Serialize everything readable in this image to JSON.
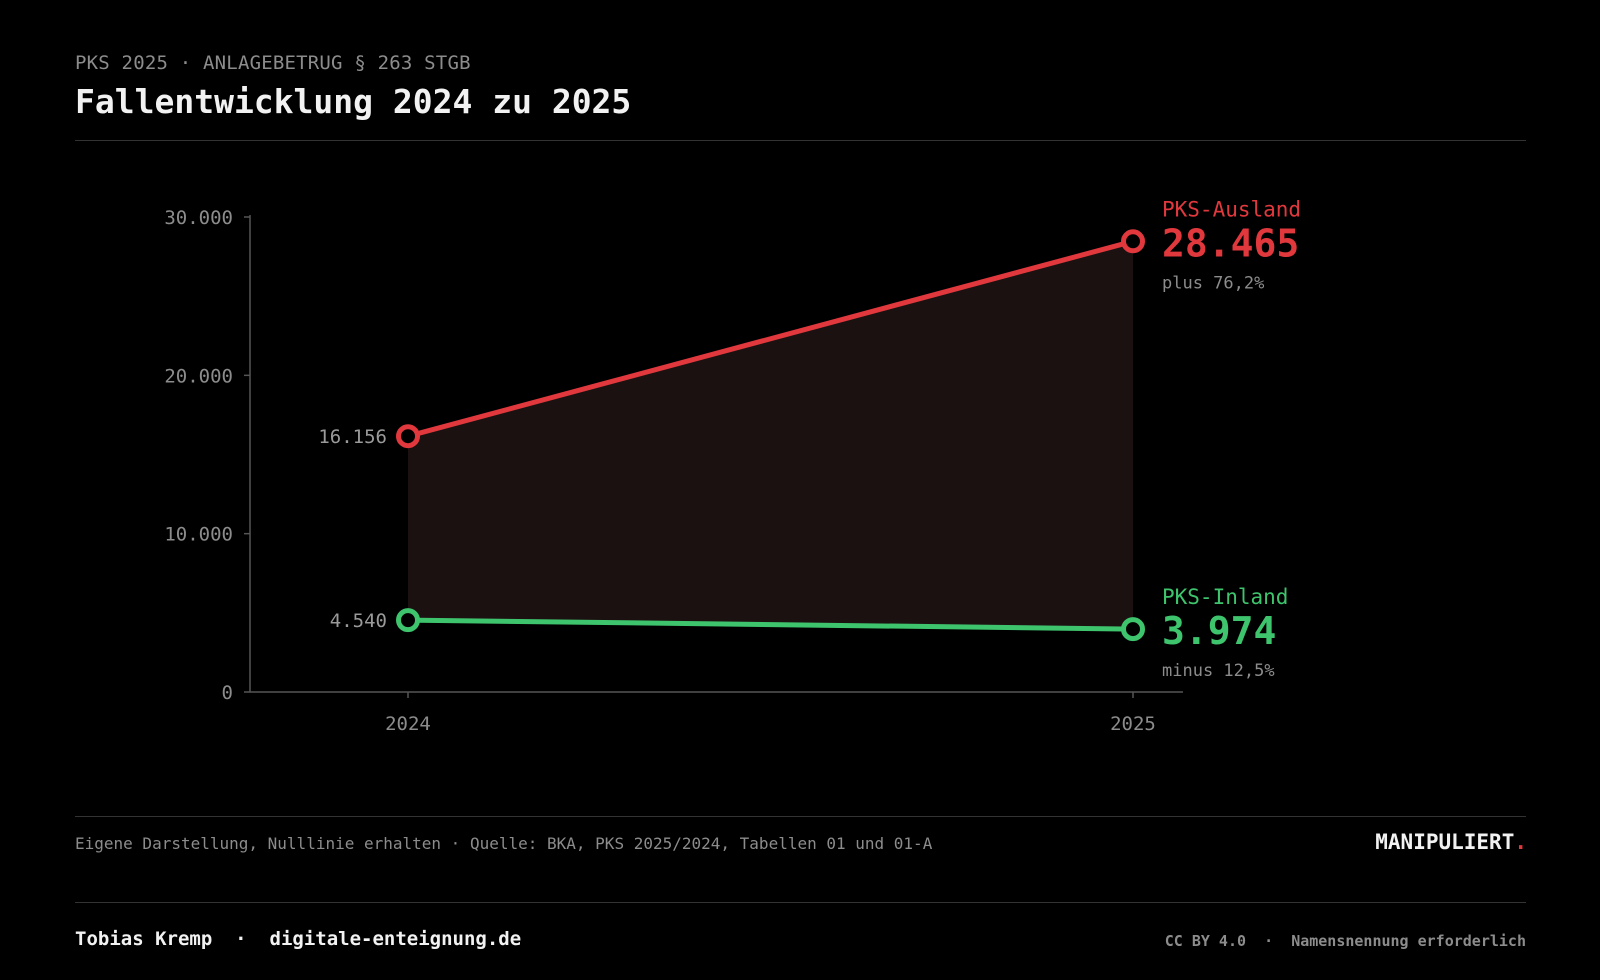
{
  "header": {
    "kicker": "PKS 2025 · ANLAGEBETRUG § 263 STGB",
    "title": "Fallentwicklung 2024 zu 2025"
  },
  "chart_data": {
    "type": "line",
    "x": [
      "2024",
      "2025"
    ],
    "ylim": [
      0,
      30000
    ],
    "yticks": [
      0,
      10000,
      20000,
      30000
    ],
    "ytick_labels": [
      "0",
      "10.000",
      "20.000",
      "30.000"
    ],
    "grid": false,
    "series": [
      {
        "name": "PKS-Ausland",
        "values": [
          16156,
          28465
        ],
        "start_label": "16.156",
        "end_label": "28.465",
        "change_label": "plus 76,2%",
        "color": "#e0383d"
      },
      {
        "name": "PKS-Inland",
        "values": [
          4540,
          3974
        ],
        "start_label": "4.540",
        "end_label": "3.974",
        "change_label": "minus 12,5%",
        "color": "#3ec46d"
      }
    ],
    "fill_between_color": "#1c1111"
  },
  "footer": {
    "source": "Eigene Darstellung, Nulllinie erhalten · Quelle: BKA, PKS 2025/2024, Tabellen 01 und 01-A",
    "brand": "MANIPULIERT",
    "brand_dot": ".",
    "author": "Tobias Kremp",
    "separator": "·",
    "site": "digitale-enteignung.de",
    "license": "CC BY 4.0",
    "license_note": "Namensnennung erforderlich"
  }
}
